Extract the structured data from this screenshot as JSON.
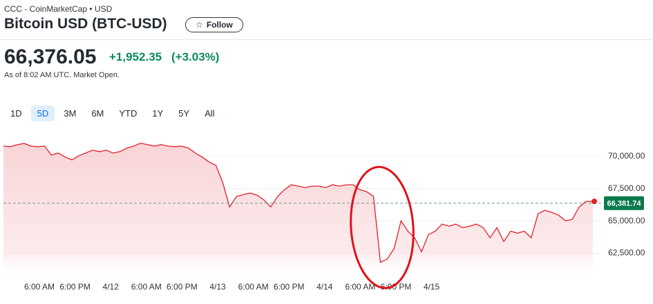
{
  "header": {
    "exchange": "CCC - CoinMarketCap • USD",
    "title": "Bitcoin USD (BTC-USD)",
    "follow": "Follow",
    "price": "66,376.05",
    "change": "+1,952.35",
    "change_percent": "(+3.03%)",
    "as_of": "As of 8:02 AM UTC. Market Open."
  },
  "ranges": [
    "1D",
    "5D",
    "3M",
    "6M",
    "YTD",
    "1Y",
    "5Y",
    "All"
  ],
  "selected_range": 1,
  "chart_data": {
    "type": "line",
    "color": "#e0202a",
    "area": true,
    "values": [
      70800,
      70750,
      70900,
      71000,
      70800,
      70750,
      70800,
      70100,
      70260,
      69950,
      69730,
      70050,
      70260,
      70480,
      70370,
      70480,
      70260,
      70370,
      70640,
      70800,
      71020,
      70910,
      70800,
      70910,
      70800,
      70750,
      70800,
      70640,
      70260,
      69950,
      69570,
      69300,
      67970,
      66090,
      66900,
      67050,
      67160,
      67000,
      66630,
      66090,
      66900,
      67430,
      67800,
      67700,
      67590,
      67700,
      67700,
      67590,
      67800,
      67700,
      67800,
      67800,
      67430,
      67270,
      66900,
      61800,
      62060,
      62880,
      65020,
      64220,
      63700,
      62620,
      63950,
      64220,
      64760,
      64600,
      64760,
      64490,
      64600,
      64760,
      64490,
      63700,
      64490,
      63420,
      64220,
      64060,
      64220,
      63700,
      65560,
      65830,
      65670,
      65450,
      65020,
      65130,
      66090,
      66520,
      66520
    ],
    "xticks": [
      "6:00 AM",
      "6:00 PM",
      "4/12",
      "6:00 AM",
      "6:00 PM",
      "4/13",
      "6:00 AM",
      "6:00 PM",
      "4/14",
      "6:00 AM",
      "6:00 PM",
      "4/15"
    ],
    "ylim": [
      60500,
      71700
    ],
    "yticks": [
      {
        "value": 62500,
        "label": "62,500.00"
      },
      {
        "value": 65000,
        "label": "65,000.00"
      },
      {
        "value": 67500,
        "label": "67,500.00"
      },
      {
        "value": 70000,
        "label": "70,000.00"
      }
    ],
    "current": {
      "value": 66381.74,
      "label": "66,381.74"
    }
  }
}
